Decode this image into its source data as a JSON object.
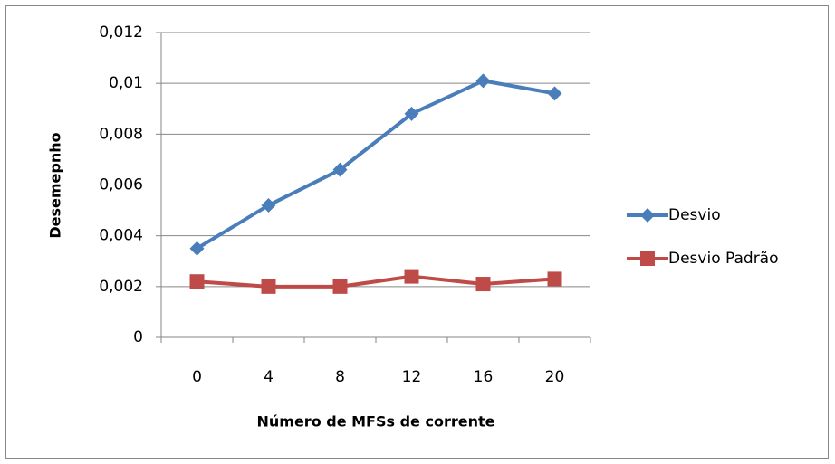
{
  "chart_data": {
    "type": "line",
    "x_label": "Número de MFSs de corrente",
    "y_label": "Desemepnho",
    "categories": [
      "0",
      "4",
      "8",
      "12",
      "16",
      "20"
    ],
    "series": [
      {
        "name": "Desvio",
        "color": "#4a7ebb",
        "marker": "diamond",
        "values": [
          0.0035,
          0.0052,
          0.0066,
          0.0088,
          0.0101,
          0.0096
        ]
      },
      {
        "name": "Desvio Padrão",
        "color": "#be4b48",
        "marker": "square",
        "values": [
          0.0022,
          0.002,
          0.002,
          0.0024,
          0.0021,
          0.0023
        ]
      }
    ],
    "ylim": [
      0,
      0.012
    ],
    "yticks": [
      0,
      {
        "value": 0.002,
        "label": "0,002"
      },
      {
        "value": 0.004,
        "label": "0,004"
      },
      {
        "value": 0.006,
        "label": "0,006"
      },
      {
        "value": 0.008,
        "label": "0,008"
      },
      {
        "value": 0.01,
        "label": "0,01"
      },
      {
        "value": 0.012,
        "label": "0,012"
      }
    ],
    "grid": true,
    "legend": "right"
  }
}
